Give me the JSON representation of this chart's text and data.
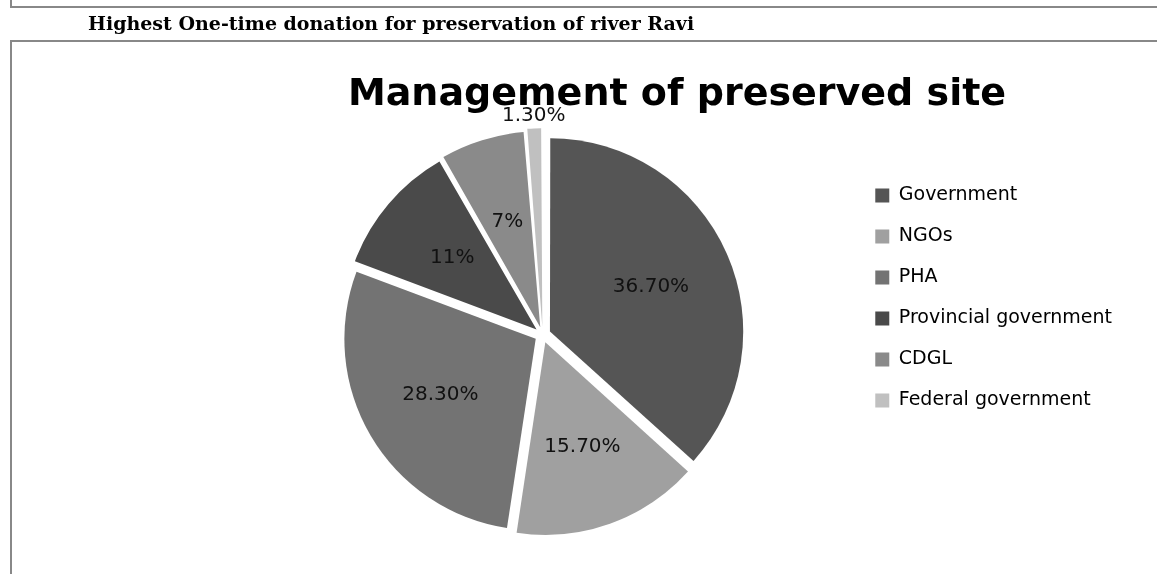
{
  "chart_data": {
    "type": "pie",
    "subtitle": "Highest One-time donation for preservation of river Ravi",
    "title": "Management of preserved site",
    "categories": [
      "Government",
      "NGOs",
      "PHA",
      "Provincial government",
      "CDGL",
      "Federal government"
    ],
    "values": [
      36.7,
      15.7,
      28.3,
      11,
      7,
      1.3
    ],
    "colors": [
      "#555555",
      "#a0a0a0",
      "#737373",
      "#4a4a4a",
      "#8a8a8a",
      "#c0c0c0"
    ],
    "value_labels": [
      "36.70%",
      "15.70%",
      "28.30%",
      "11%",
      "7%",
      "1.30%"
    ],
    "legend": "right"
  }
}
